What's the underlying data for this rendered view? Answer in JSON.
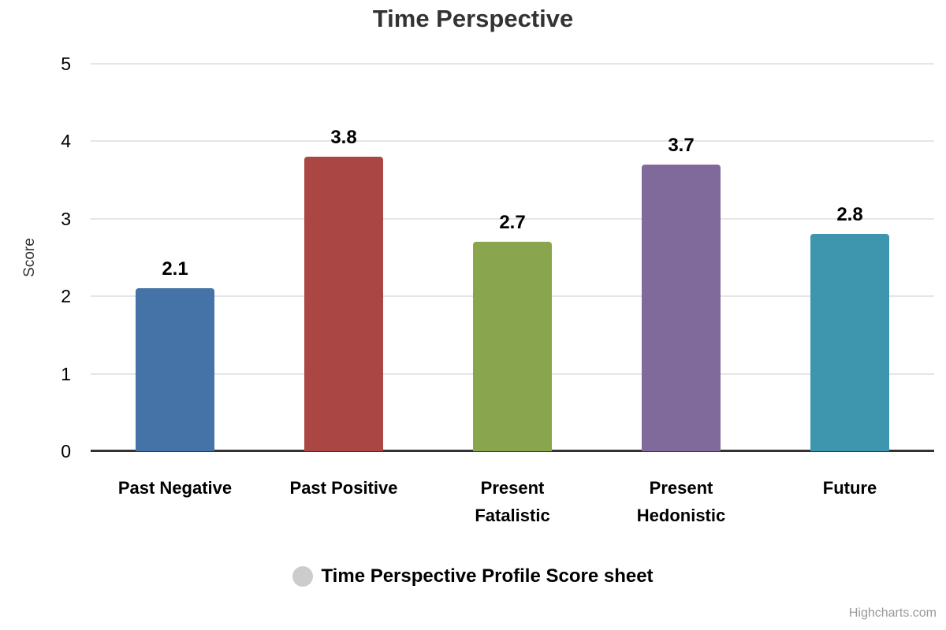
{
  "chart_data": {
    "type": "bar",
    "title": "Time Perspective",
    "categories": [
      "Past Negative",
      "Past Positive",
      "Present Fatalistic",
      "Present Hedonistic",
      "Future"
    ],
    "values": [
      2.1,
      3.8,
      2.7,
      3.7,
      2.8
    ],
    "data_labels": [
      "2.1",
      "3.8",
      "2.7",
      "3.7",
      "2.8"
    ],
    "series": [
      {
        "name": "Time Perspective Profile Score sheet",
        "values": [
          2.1,
          3.8,
          2.7,
          3.7,
          2.8
        ]
      }
    ],
    "xlabel": "",
    "ylabel": "Score",
    "ylim": [
      0,
      5
    ],
    "yticks": [
      0,
      1,
      2,
      3,
      4,
      5
    ],
    "grid": true,
    "legend_position": "bottom",
    "bar_colors": [
      "#4572A7",
      "#AA4643",
      "#89A54E",
      "#80699B",
      "#3D96AE"
    ],
    "legend_marker_color": "#CCCCCC"
  },
  "colors": {
    "title": "#333333",
    "axis_line": "#333333",
    "gridline": "#E6E6E6",
    "tick_label": "#000000",
    "credits_text": "#999999",
    "background": "#FFFFFF"
  },
  "credits": "Highcharts.com"
}
